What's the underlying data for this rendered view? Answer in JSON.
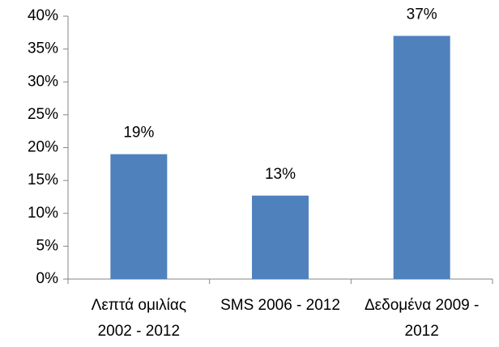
{
  "chart_data": {
    "type": "bar",
    "categories": [
      "Λεπτά ομιλίας 2002 - 2012",
      "SMS 2006 - 2012",
      "Δεδομένα 2009 - 2012"
    ],
    "values": [
      19,
      12.7,
      37
    ],
    "value_labels": [
      "19%",
      "13%",
      "37%"
    ],
    "color": "#4f81bd",
    "ylim": [
      0,
      40
    ],
    "yticks": [
      {
        "value": 0,
        "label": "0%"
      },
      {
        "value": 5,
        "label": "5%"
      },
      {
        "value": 10,
        "label": "10%"
      },
      {
        "value": 15,
        "label": "15%"
      },
      {
        "value": 20,
        "label": "20%"
      },
      {
        "value": 25,
        "label": "25%"
      },
      {
        "value": 30,
        "label": "30%"
      },
      {
        "value": 35,
        "label": "35%"
      },
      {
        "value": 40,
        "label": "40%"
      }
    ],
    "grid": false
  }
}
